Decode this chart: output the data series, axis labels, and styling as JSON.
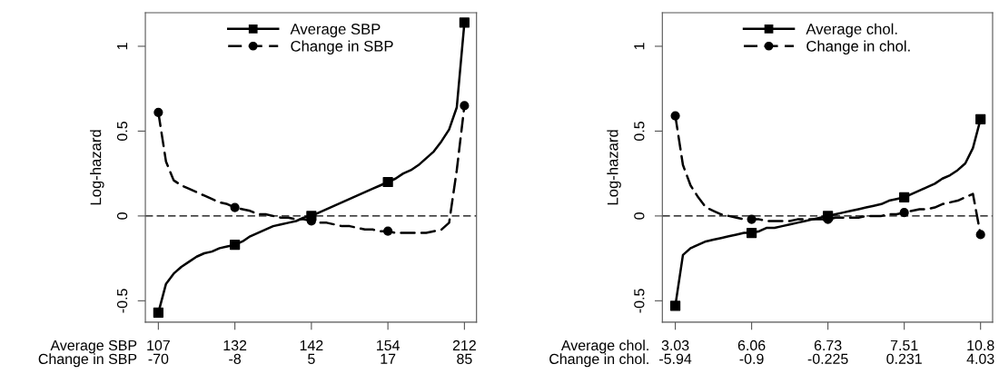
{
  "chart_data": [
    {
      "type": "line",
      "ylabel": "Log-hazard",
      "annotations": [
        "Average SBP",
        "Change in SBP"
      ],
      "categories": [
        "107\n-70",
        null,
        null,
        null,
        null,
        null,
        null,
        null,
        null,
        null,
        "132\n-8",
        null,
        null,
        null,
        null,
        null,
        null,
        null,
        null,
        null,
        "142\n5",
        null,
        null,
        null,
        null,
        null,
        null,
        null,
        null,
        null,
        "154\n17",
        null,
        null,
        null,
        null,
        null,
        null,
        null,
        null,
        null,
        "212\n85"
      ],
      "ylim": [
        -0.626,
        1.198
      ],
      "yticks": [
        -0.5,
        0,
        0.5,
        1
      ],
      "grid": false,
      "legend": "top",
      "ref_lines": [
        {
          "axis": "y",
          "value": 0,
          "label": null,
          "color": "#000000",
          "line_style": "dashed"
        }
      ],
      "series": [
        {
          "type": "scatter",
          "name": "Average SBP",
          "color": "#000000",
          "marker": "square",
          "values": [
            -0.57,
            null,
            null,
            null,
            null,
            null,
            null,
            null,
            null,
            null,
            -0.17,
            null,
            null,
            null,
            null,
            null,
            null,
            null,
            null,
            null,
            0,
            null,
            null,
            null,
            null,
            null,
            null,
            null,
            null,
            null,
            0.2,
            null,
            null,
            null,
            null,
            null,
            null,
            null,
            null,
            null,
            1.14
          ]
        },
        {
          "type": "scatter",
          "name": "Change in SBP",
          "color": "#000000",
          "marker": "circle",
          "values": [
            0.61,
            null,
            null,
            null,
            null,
            null,
            null,
            null,
            null,
            null,
            0.05,
            null,
            null,
            null,
            null,
            null,
            null,
            null,
            null,
            null,
            -0.03,
            null,
            null,
            null,
            null,
            null,
            null,
            null,
            null,
            null,
            -0.09,
            null,
            null,
            null,
            null,
            null,
            null,
            null,
            null,
            null,
            0.65
          ]
        },
        {
          "color": "#000000",
          "marker": "none",
          "line_style": "solid",
          "values": [
            -0.57,
            -0.4,
            -0.34,
            -0.3,
            -0.27,
            -0.24,
            -0.22,
            -0.21,
            -0.19,
            -0.18,
            -0.17,
            -0.15,
            -0.12,
            -0.1,
            -0.08,
            -0.06,
            -0.05,
            -0.04,
            -0.03,
            -0.01,
            0,
            0.02,
            0.04,
            0.06,
            0.08,
            0.1,
            0.12,
            0.14,
            0.16,
            0.18,
            0.2,
            0.22,
            0.25,
            0.27,
            0.3,
            0.34,
            0.38,
            0.44,
            0.51,
            0.64,
            1.14
          ]
        },
        {
          "color": "#000000",
          "marker": "none",
          "line_style": "dashed",
          "values": [
            0.61,
            0.32,
            0.21,
            0.18,
            0.16,
            0.14,
            0.12,
            0.1,
            0.08,
            0.07,
            0.05,
            0.04,
            0.03,
            0.01,
            0.01,
            0.0,
            -0.01,
            -0.01,
            -0.02,
            -0.02,
            -0.03,
            -0.04,
            -0.04,
            -0.05,
            -0.06,
            -0.06,
            -0.07,
            -0.08,
            -0.08,
            -0.09,
            -0.09,
            -0.1,
            -0.1,
            -0.1,
            -0.1,
            -0.1,
            -0.09,
            -0.08,
            -0.04,
            0.27,
            0.65
          ]
        }
      ]
    },
    {
      "type": "line",
      "ylabel": "Log-hazard",
      "annotations": [
        "Average chol.",
        "Change in chol."
      ],
      "categories": [
        "3.03\n-5.94",
        null,
        null,
        null,
        null,
        null,
        null,
        null,
        null,
        null,
        "6.06\n-0.9",
        null,
        null,
        null,
        null,
        null,
        null,
        null,
        null,
        null,
        "6.73\n-0.225",
        null,
        null,
        null,
        null,
        null,
        null,
        null,
        null,
        null,
        "7.51\n0.231",
        null,
        null,
        null,
        null,
        null,
        null,
        null,
        null,
        null,
        "10.8\n4.03"
      ],
      "ylim": [
        -0.626,
        1.198
      ],
      "yticks": [
        -0.5,
        0,
        0.5,
        1
      ],
      "grid": false,
      "legend": "top",
      "ref_lines": [
        {
          "axis": "y",
          "value": 0,
          "label": null,
          "color": "#000000",
          "line_style": "dashed"
        }
      ],
      "series": [
        {
          "type": "scatter",
          "name": "Average chol.",
          "color": "#000000",
          "marker": "square",
          "values": [
            -0.53,
            null,
            null,
            null,
            null,
            null,
            null,
            null,
            null,
            null,
            -0.1,
            null,
            null,
            null,
            null,
            null,
            null,
            null,
            null,
            null,
            0,
            null,
            null,
            null,
            null,
            null,
            null,
            null,
            null,
            null,
            0.11,
            null,
            null,
            null,
            null,
            null,
            null,
            null,
            null,
            null,
            0.57
          ]
        },
        {
          "type": "scatter",
          "name": "Change in chol.",
          "color": "#000000",
          "marker": "circle",
          "values": [
            0.59,
            null,
            null,
            null,
            null,
            null,
            null,
            null,
            null,
            null,
            -0.02,
            null,
            null,
            null,
            null,
            null,
            null,
            null,
            null,
            null,
            -0.02,
            null,
            null,
            null,
            null,
            null,
            null,
            null,
            null,
            null,
            0.02,
            null,
            null,
            null,
            null,
            null,
            null,
            null,
            null,
            null,
            -0.11
          ]
        },
        {
          "color": "#000000",
          "marker": "none",
          "line_style": "solid",
          "values": [
            -0.53,
            -0.23,
            -0.19,
            -0.17,
            -0.15,
            -0.14,
            -0.13,
            -0.12,
            -0.11,
            -0.1,
            -0.1,
            -0.09,
            -0.07,
            -0.07,
            -0.06,
            -0.05,
            -0.04,
            -0.03,
            -0.02,
            -0.01,
            0,
            0.01,
            0.02,
            0.03,
            0.04,
            0.05,
            0.06,
            0.07,
            0.09,
            0.1,
            0.11,
            0.13,
            0.15,
            0.17,
            0.19,
            0.22,
            0.24,
            0.27,
            0.31,
            0.4,
            0.57
          ]
        },
        {
          "color": "#000000",
          "marker": "none",
          "line_style": "dashed",
          "values": [
            0.59,
            0.3,
            0.18,
            0.11,
            0.05,
            0.03,
            0.01,
            0.0,
            -0.01,
            -0.02,
            -0.02,
            -0.02,
            -0.03,
            -0.03,
            -0.03,
            -0.03,
            -0.02,
            -0.02,
            -0.02,
            -0.02,
            -0.02,
            -0.01,
            -0.01,
            -0.01,
            -0.01,
            0.0,
            0.0,
            0.0,
            0.01,
            0.01,
            0.02,
            0.03,
            0.04,
            0.04,
            0.05,
            0.07,
            0.08,
            0.09,
            0.11,
            0.13,
            -0.11
          ]
        }
      ]
    }
  ]
}
